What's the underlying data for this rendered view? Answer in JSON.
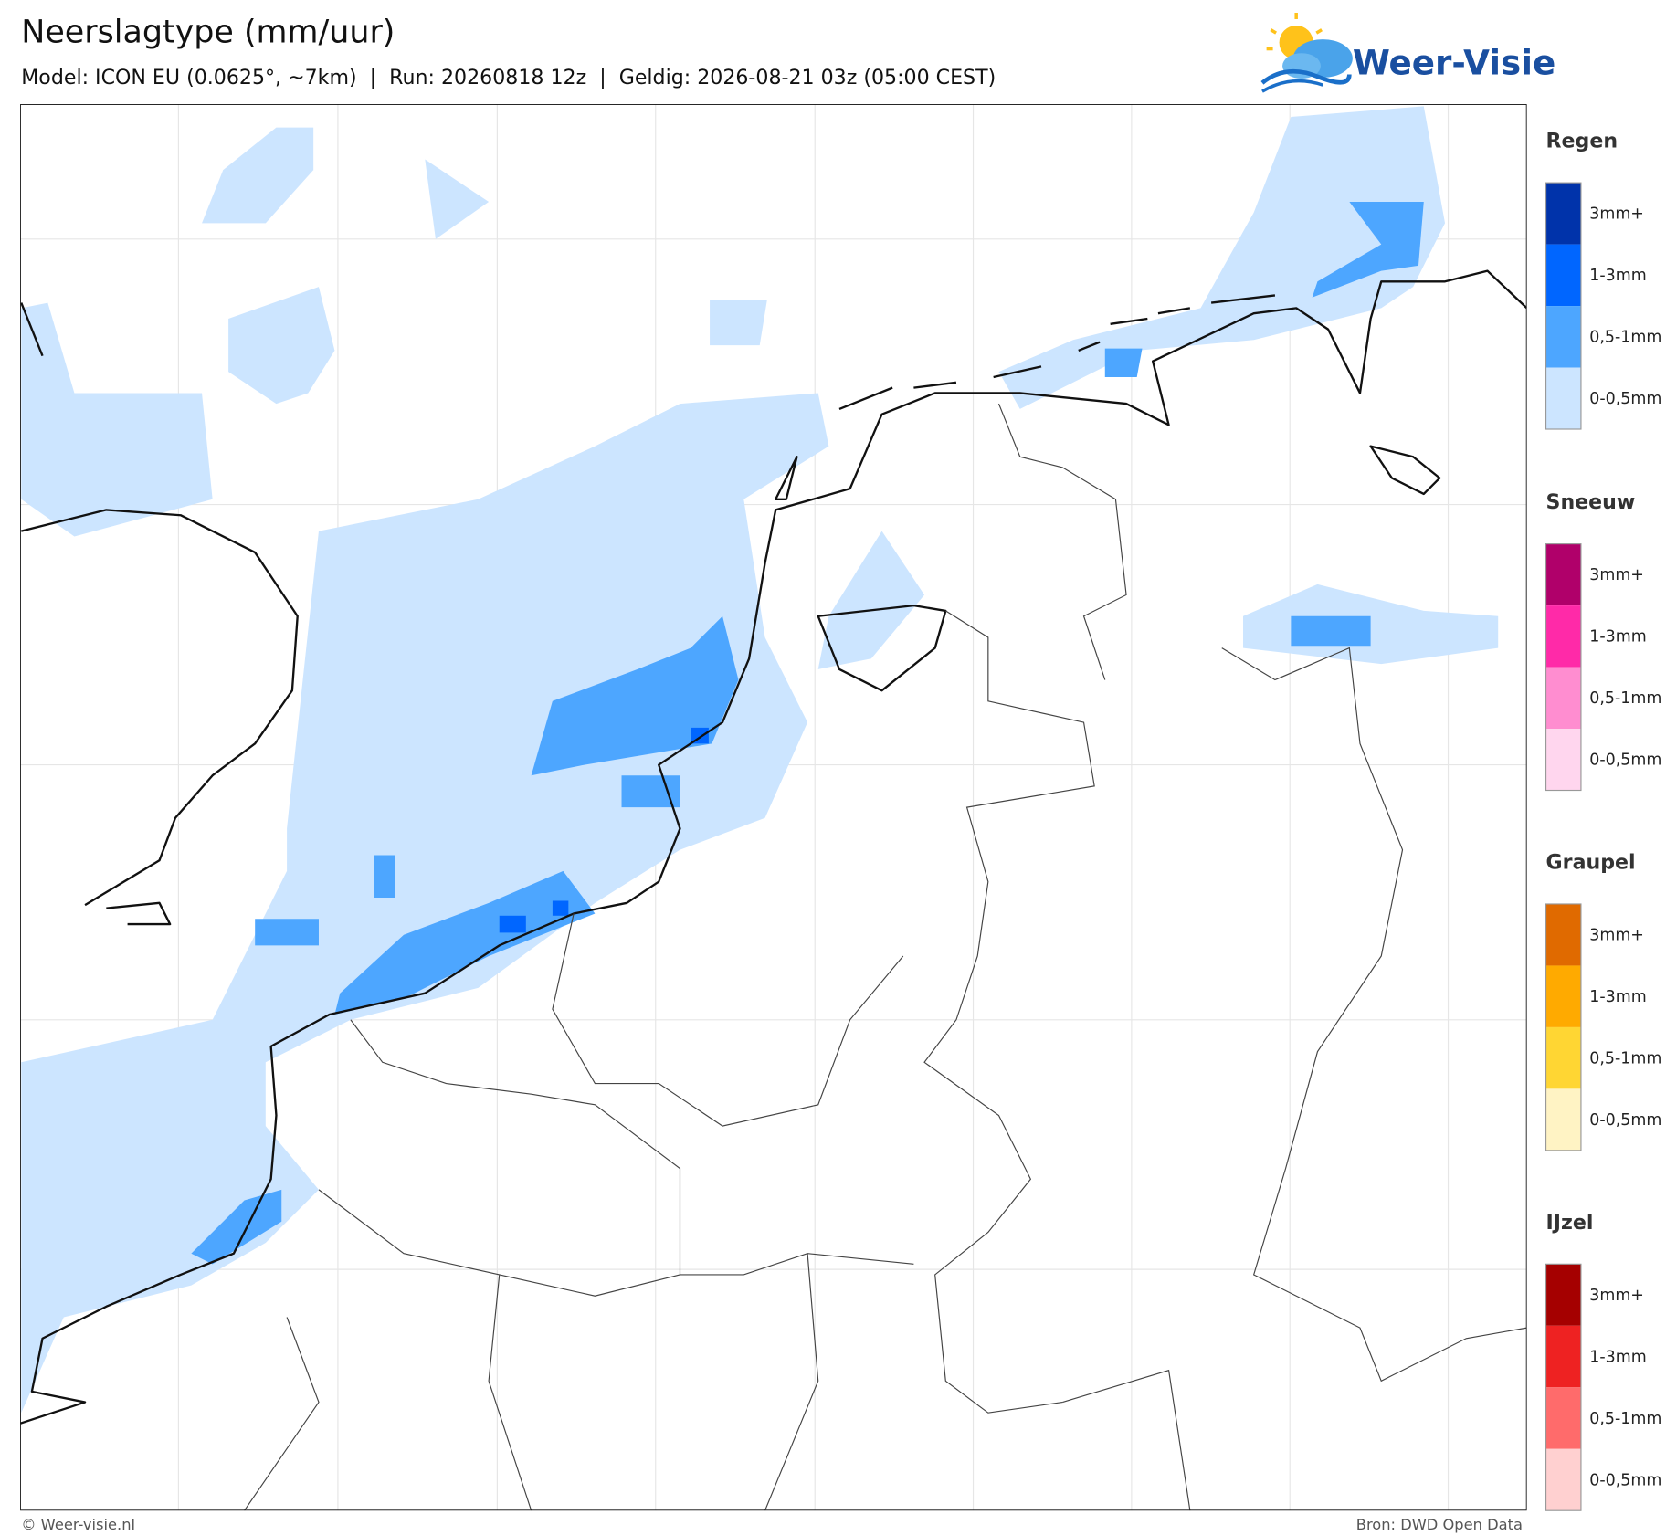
{
  "header": {
    "title": "Neerslagtype (mm/uur)",
    "subtitle": "Model: ICON EU (0.0625°, ~7km)  |  Run: 20260818 12z  |  Geldig: 2026-08-21 03z (05:00 CEST)",
    "logo": "Weer-Visie"
  },
  "legend": [
    {
      "title": "Regen",
      "items": [
        {
          "label": "3mm+",
          "color": "#0033aa"
        },
        {
          "label": "1-3mm",
          "color": "#0066ff"
        },
        {
          "label": "0,5-1mm",
          "color": "#4da6ff"
        },
        {
          "label": "0-0,5mm",
          "color": "#cce5ff"
        }
      ]
    },
    {
      "title": "Sneeuw",
      "items": [
        {
          "label": "3mm+",
          "color": "#b0006a"
        },
        {
          "label": "1-3mm",
          "color": "#ff2aa8"
        },
        {
          "label": "0,5-1mm",
          "color": "#ff8dd0"
        },
        {
          "label": "0-0,5mm",
          "color": "#ffd6ee"
        }
      ]
    },
    {
      "title": "Graupel",
      "items": [
        {
          "label": "3mm+",
          "color": "#e06a00"
        },
        {
          "label": "1-3mm",
          "color": "#ffaa00"
        },
        {
          "label": "0,5-1mm",
          "color": "#ffd633"
        },
        {
          "label": "0-0,5mm",
          "color": "#fff3c4"
        }
      ]
    },
    {
      "title": "IJzel",
      "items": [
        {
          "label": "3mm+",
          "color": "#a50000"
        },
        {
          "label": "1-3mm",
          "color": "#ee2222"
        },
        {
          "label": "0,5-1mm",
          "color": "#ff6b6b"
        },
        {
          "label": "0-0,5mm",
          "color": "#ffd0d0"
        }
      ]
    }
  ],
  "footer": {
    "copyright": "© Weer-visie.nl",
    "source": "Bron: DWD Open Data"
  }
}
